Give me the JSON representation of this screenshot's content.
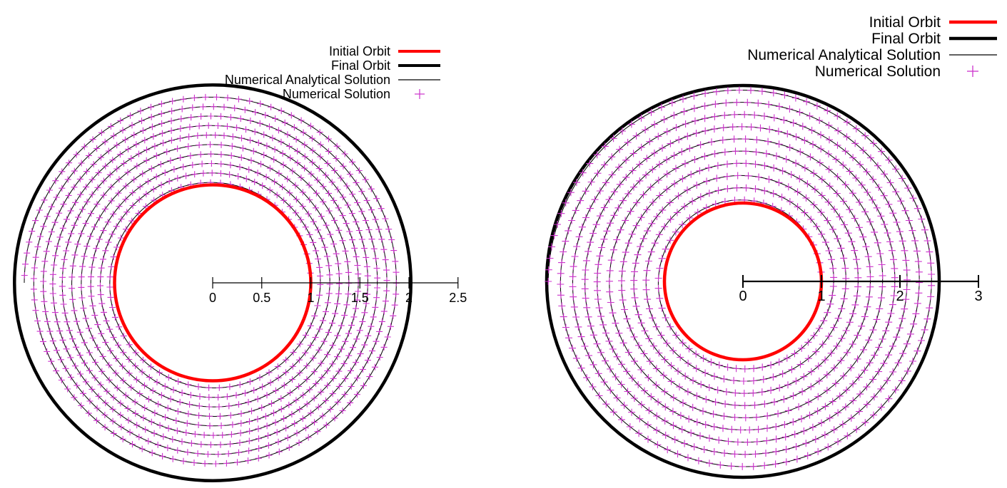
{
  "chart_data": [
    {
      "type": "scatter",
      "title": "",
      "legend": [
        {
          "label": "Initial Orbit",
          "color": "#ff0000",
          "style": "thick-line"
        },
        {
          "label": "Final Orbit",
          "color": "#000000",
          "style": "thick-line"
        },
        {
          "label": "Numerical Analytical Solution",
          "color": "#000000",
          "style": "thin-line"
        },
        {
          "label": "Numerical Solution",
          "color": "#cc33cc",
          "style": "plus-marker"
        }
      ],
      "legend_position": "top-right",
      "x_axis": {
        "ticks": [
          0,
          0.5,
          1,
          1.5,
          2,
          2.5
        ],
        "labels": [
          "0",
          "0.5",
          "1",
          "1.5",
          "2",
          "2.5"
        ],
        "range": [
          0,
          2.5
        ]
      },
      "initial_orbit_radius": 1.0,
      "final_orbit_radius": 2.02,
      "spiral": {
        "r_start": 1.0,
        "r_end": 1.92,
        "turns": 9.5
      },
      "colors": {
        "initial": "#ff0000",
        "final": "#000000",
        "analytical": "#000000",
        "numerical": "#cc33cc"
      }
    },
    {
      "type": "scatter",
      "title": "",
      "legend": [
        {
          "label": "Initial Orbit",
          "color": "#ff0000",
          "style": "thick-line"
        },
        {
          "label": "Final Orbit",
          "color": "#000000",
          "style": "thick-line"
        },
        {
          "label": "Numerical Analytical Solution",
          "color": "#000000",
          "style": "thin-line"
        },
        {
          "label": "Numerical Solution",
          "color": "#cc33cc",
          "style": "plus-marker"
        }
      ],
      "legend_position": "top-right",
      "x_axis": {
        "ticks": [
          0,
          1,
          2,
          3
        ],
        "labels": [
          "0",
          "1",
          "2",
          "3"
        ],
        "range": [
          0,
          3
        ]
      },
      "initial_orbit_radius": 1.0,
      "final_orbit_radius": 2.5,
      "spiral": {
        "r_start": 1.0,
        "r_end": 2.48,
        "turns": 9.5
      },
      "colors": {
        "initial": "#ff0000",
        "final": "#000000",
        "analytical": "#000000",
        "numerical": "#cc33cc"
      }
    }
  ]
}
